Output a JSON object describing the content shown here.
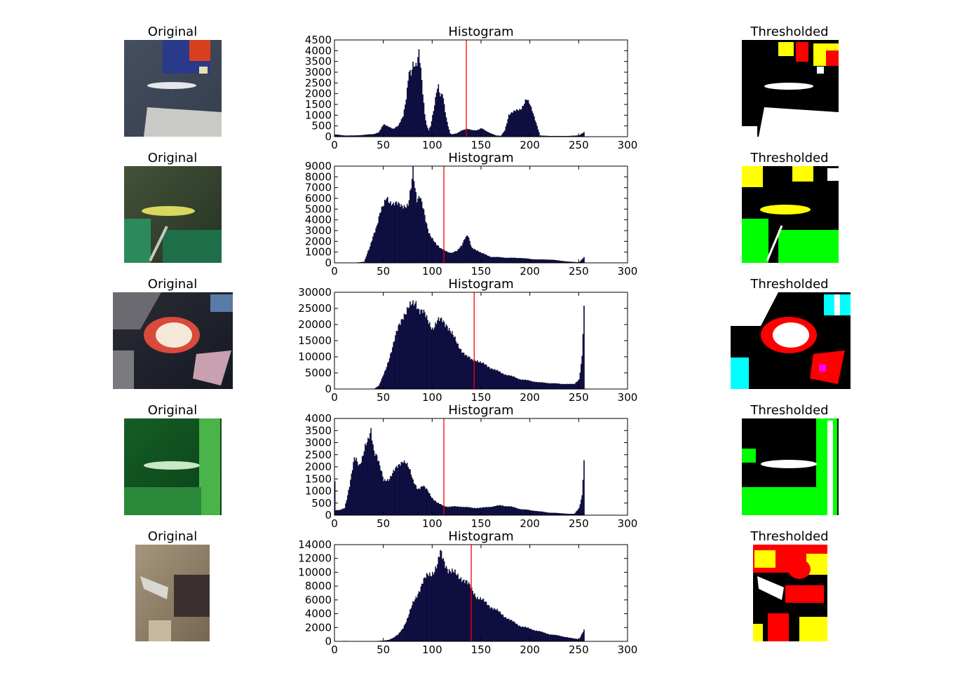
{
  "figure": {
    "rows": [
      {
        "original_title": "Original",
        "histogram_title": "Histogram",
        "thresholded_title": "Thresholded"
      },
      {
        "original_title": "Original",
        "histogram_title": "Histogram",
        "thresholded_title": "Thresholded"
      },
      {
        "original_title": "Original",
        "histogram_title": "Histogram",
        "thresholded_title": "Thresholded"
      },
      {
        "original_title": "Original",
        "histogram_title": "Histogram",
        "thresholded_title": "Thresholded"
      },
      {
        "original_title": "Original",
        "histogram_title": "Histogram",
        "thresholded_title": "Thresholded"
      }
    ],
    "colors": {
      "bars": "#0a0a50",
      "threshold_line": "#ff0000",
      "axes": "#000000"
    }
  },
  "chart_data": [
    {
      "type": "bar",
      "title": "Histogram",
      "xlim": [
        0,
        300
      ],
      "ylim": [
        0,
        4500
      ],
      "xticks": [
        0,
        50,
        100,
        150,
        200,
        250,
        300
      ],
      "yticks": [
        0,
        500,
        1000,
        1500,
        2000,
        2500,
        3000,
        3500,
        4000,
        4500
      ],
      "threshold": 135,
      "x": [
        0,
        10,
        20,
        30,
        40,
        45,
        50,
        55,
        60,
        65,
        70,
        73,
        76,
        78,
        80,
        82,
        84,
        86,
        88,
        90,
        92,
        94,
        96,
        98,
        100,
        102,
        104,
        106,
        108,
        110,
        112,
        114,
        116,
        118,
        120,
        125,
        130,
        135,
        140,
        145,
        150,
        155,
        160,
        165,
        170,
        174,
        178,
        182,
        186,
        190,
        193,
        196,
        199,
        202,
        205,
        210,
        220,
        240,
        250,
        255
      ],
      "values": [
        100,
        50,
        50,
        80,
        120,
        200,
        560,
        480,
        350,
        500,
        1000,
        1800,
        3000,
        2800,
        3300,
        3300,
        3500,
        4100,
        3200,
        2000,
        1000,
        500,
        300,
        500,
        1000,
        1500,
        2100,
        2300,
        1800,
        2000,
        1500,
        900,
        500,
        150,
        100,
        150,
        300,
        350,
        300,
        300,
        380,
        250,
        150,
        50,
        40,
        300,
        1000,
        1100,
        1250,
        1300,
        1450,
        1700,
        1550,
        1250,
        800,
        50,
        30,
        30,
        60,
        200
      ]
    },
    {
      "type": "bar",
      "title": "Histogram",
      "xlim": [
        0,
        300
      ],
      "ylim": [
        0,
        9000
      ],
      "xticks": [
        0,
        50,
        100,
        150,
        200,
        250,
        300
      ],
      "yticks": [
        0,
        1000,
        2000,
        3000,
        4000,
        5000,
        6000,
        7000,
        8000,
        9000
      ],
      "threshold": 112,
      "x": [
        0,
        20,
        30,
        33,
        36,
        40,
        43,
        46,
        50,
        53,
        56,
        60,
        65,
        70,
        75,
        78,
        80,
        82,
        84,
        87,
        90,
        93,
        96,
        100,
        104,
        108,
        112,
        116,
        120,
        125,
        130,
        133,
        136,
        140,
        145,
        150,
        160,
        170,
        180,
        190,
        200,
        210,
        220,
        230,
        240,
        250,
        255
      ],
      "values": [
        0,
        0,
        100,
        800,
        1500,
        2800,
        3500,
        4500,
        5300,
        6200,
        5800,
        5400,
        5400,
        5400,
        5300,
        6800,
        8500,
        7000,
        6000,
        6400,
        5200,
        3800,
        2800,
        2300,
        1700,
        1300,
        1200,
        1000,
        900,
        1100,
        1700,
        2300,
        2500,
        1400,
        1200,
        900,
        550,
        500,
        450,
        450,
        350,
        300,
        300,
        200,
        100,
        50,
        500
      ]
    },
    {
      "type": "bar",
      "title": "Histogram",
      "xlim": [
        0,
        300
      ],
      "ylim": [
        0,
        30000
      ],
      "xticks": [
        0,
        50,
        100,
        150,
        200,
        250,
        300
      ],
      "yticks": [
        0,
        5000,
        10000,
        15000,
        20000,
        25000,
        30000
      ],
      "threshold": 143,
      "x": [
        0,
        40,
        45,
        48,
        52,
        56,
        60,
        65,
        70,
        75,
        80,
        83,
        86,
        90,
        95,
        100,
        105,
        110,
        115,
        120,
        125,
        130,
        135,
        140,
        145,
        150,
        160,
        170,
        180,
        190,
        200,
        210,
        220,
        230,
        240,
        245,
        250,
        253,
        255
      ],
      "values": [
        0,
        0,
        1000,
        3000,
        6000,
        10000,
        14000,
        19000,
        23000,
        25000,
        26000,
        27000,
        25000,
        24000,
        21000,
        19000,
        21000,
        21000,
        20000,
        17000,
        14000,
        12000,
        10000,
        9000,
        9000,
        8000,
        6500,
        5000,
        4000,
        3000,
        2500,
        2000,
        1800,
        1600,
        1500,
        1500,
        3000,
        10000,
        24500
      ]
    },
    {
      "type": "bar",
      "title": "Histogram",
      "xlim": [
        0,
        300
      ],
      "ylim": [
        0,
        4000
      ],
      "xticks": [
        0,
        50,
        100,
        150,
        200,
        250,
        300
      ],
      "yticks": [
        0,
        500,
        1000,
        1500,
        2000,
        2500,
        3000,
        3500,
        4000
      ],
      "threshold": 112,
      "x": [
        0,
        1,
        5,
        10,
        15,
        20,
        22,
        25,
        28,
        31,
        34,
        37,
        40,
        43,
        46,
        50,
        55,
        60,
        65,
        70,
        73,
        76,
        80,
        85,
        90,
        95,
        100,
        105,
        110,
        115,
        120,
        130,
        140,
        150,
        160,
        170,
        180,
        190,
        200,
        210,
        220,
        230,
        240,
        245,
        250,
        253,
        255
      ],
      "values": [
        1400,
        200,
        200,
        300,
        1200,
        2300,
        2300,
        2100,
        2400,
        2800,
        3000,
        3500,
        2700,
        2500,
        2000,
        1400,
        1500,
        1800,
        2000,
        2300,
        2200,
        1900,
        1400,
        1100,
        1200,
        1000,
        700,
        500,
        400,
        350,
        350,
        350,
        300,
        300,
        350,
        400,
        350,
        250,
        200,
        150,
        100,
        80,
        50,
        50,
        300,
        800,
        2150
      ]
    },
    {
      "type": "bar",
      "title": "Histogram",
      "xlim": [
        0,
        300
      ],
      "ylim": [
        0,
        14000
      ],
      "xticks": [
        0,
        50,
        100,
        150,
        200,
        250,
        300
      ],
      "yticks": [
        0,
        2000,
        4000,
        6000,
        8000,
        10000,
        12000,
        14000
      ],
      "threshold": 140,
      "x": [
        0,
        10,
        20,
        30,
        40,
        50,
        55,
        60,
        65,
        70,
        75,
        80,
        85,
        90,
        95,
        100,
        105,
        108,
        112,
        116,
        120,
        125,
        130,
        135,
        140,
        145,
        150,
        155,
        160,
        165,
        170,
        175,
        180,
        185,
        190,
        200,
        210,
        220,
        230,
        240,
        250,
        255
      ],
      "values": [
        0,
        50,
        0,
        0,
        0,
        100,
        200,
        500,
        1000,
        2000,
        3500,
        5500,
        7000,
        8500,
        9500,
        10000,
        11000,
        12700,
        11500,
        10500,
        10000,
        9500,
        9200,
        8500,
        7500,
        6500,
        6000,
        5500,
        5000,
        4500,
        4000,
        3500,
        3000,
        2600,
        2200,
        1800,
        1400,
        1000,
        800,
        500,
        300,
        1600
      ]
    }
  ]
}
